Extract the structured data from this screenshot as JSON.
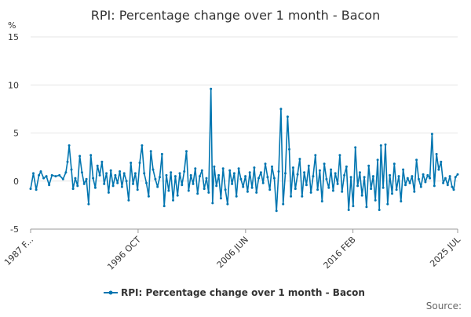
{
  "chart_data": {
    "type": "line",
    "title": "RPI: Percentage change over 1 month - Bacon",
    "ylabel": "%",
    "xlabel": "",
    "ylim": [
      -5,
      15
    ],
    "y_ticks": [
      -5,
      0,
      5,
      10,
      15
    ],
    "x_range": [
      1987.08,
      2025.5
    ],
    "x_ticks": [
      {
        "label": "1987 F...",
        "x": 1987.08
      },
      {
        "label": "1996 OCT",
        "x": 1996.75
      },
      {
        "label": "2006 JUN",
        "x": 2006.42
      },
      {
        "label": "2016 FEB",
        "x": 2016.08
      },
      {
        "label": "2025 JUL",
        "x": 2025.5
      }
    ],
    "grid": true,
    "legend_position": "bottom-center",
    "series": [
      {
        "name": "RPI: Percentage change over 1 month - Bacon",
        "color": "#0075b0",
        "points": [
          [
            1987.08,
            -0.8
          ],
          [
            1987.33,
            0.8
          ],
          [
            1987.58,
            -0.9
          ],
          [
            1987.83,
            0.6
          ],
          [
            1988.0,
            1.0
          ],
          [
            1988.25,
            0.3
          ],
          [
            1988.5,
            0.5
          ],
          [
            1988.75,
            -0.4
          ],
          [
            1989.0,
            0.6
          ],
          [
            1989.33,
            0.5
          ],
          [
            1989.67,
            0.6
          ],
          [
            1990.0,
            0.2
          ],
          [
            1990.25,
            0.9
          ],
          [
            1990.4,
            2.0
          ],
          [
            1990.55,
            3.7
          ],
          [
            1990.75,
            1.2
          ],
          [
            1990.9,
            -0.8
          ],
          [
            1991.1,
            0.3
          ],
          [
            1991.3,
            -0.5
          ],
          [
            1991.5,
            2.6
          ],
          [
            1991.7,
            0.9
          ],
          [
            1991.9,
            -0.3
          ],
          [
            1992.1,
            0.2
          ],
          [
            1992.3,
            -2.4
          ],
          [
            1992.5,
            2.7
          ],
          [
            1992.7,
            0.3
          ],
          [
            1992.9,
            -0.7
          ],
          [
            1993.1,
            1.6
          ],
          [
            1993.3,
            0.6
          ],
          [
            1993.5,
            2.0
          ],
          [
            1993.7,
            -0.3
          ],
          [
            1993.9,
            0.8
          ],
          [
            1994.1,
            -1.2
          ],
          [
            1994.3,
            1.1
          ],
          [
            1994.5,
            -0.5
          ],
          [
            1994.7,
            0.6
          ],
          [
            1994.9,
            -0.2
          ],
          [
            1995.1,
            1.0
          ],
          [
            1995.3,
            -0.6
          ],
          [
            1995.5,
            0.8
          ],
          [
            1995.7,
            0.0
          ],
          [
            1995.9,
            -2.0
          ],
          [
            1996.1,
            1.9
          ],
          [
            1996.3,
            -0.3
          ],
          [
            1996.5,
            0.8
          ],
          [
            1996.7,
            -0.9
          ],
          [
            1996.9,
            1.9
          ],
          [
            1997.1,
            3.7
          ],
          [
            1997.3,
            0.8
          ],
          [
            1997.5,
            -0.2
          ],
          [
            1997.7,
            -1.6
          ],
          [
            1997.9,
            3.1
          ],
          [
            1998.1,
            1.2
          ],
          [
            1998.3,
            0.2
          ],
          [
            1998.5,
            -0.6
          ],
          [
            1998.7,
            0.4
          ],
          [
            1998.9,
            2.8
          ],
          [
            1999.1,
            -2.6
          ],
          [
            1999.3,
            0.6
          ],
          [
            1999.5,
            -1.0
          ],
          [
            1999.7,
            0.9
          ],
          [
            1999.9,
            -2.0
          ],
          [
            2000.1,
            0.5
          ],
          [
            2000.3,
            -1.5
          ],
          [
            2000.5,
            0.8
          ],
          [
            2000.7,
            -0.4
          ],
          [
            2000.9,
            1.0
          ],
          [
            2001.1,
            3.1
          ],
          [
            2001.3,
            -1.0
          ],
          [
            2001.5,
            0.6
          ],
          [
            2001.7,
            -0.3
          ],
          [
            2001.9,
            1.3
          ],
          [
            2002.1,
            -1.3
          ],
          [
            2002.3,
            0.5
          ],
          [
            2002.5,
            1.1
          ],
          [
            2002.7,
            -0.8
          ],
          [
            2002.9,
            0.3
          ],
          [
            2003.1,
            -1.2
          ],
          [
            2003.3,
            9.6
          ],
          [
            2003.45,
            -2.3
          ],
          [
            2003.6,
            1.5
          ],
          [
            2003.8,
            -0.5
          ],
          [
            2004.0,
            0.6
          ],
          [
            2004.2,
            -1.8
          ],
          [
            2004.4,
            1.3
          ],
          [
            2004.6,
            -0.9
          ],
          [
            2004.8,
            -2.4
          ],
          [
            2005.0,
            1.1
          ],
          [
            2005.2,
            -0.3
          ],
          [
            2005.4,
            0.8
          ],
          [
            2005.6,
            -1.6
          ],
          [
            2005.8,
            1.3
          ],
          [
            2006.0,
            0.2
          ],
          [
            2006.2,
            -0.6
          ],
          [
            2006.4,
            0.5
          ],
          [
            2006.6,
            -1.1
          ],
          [
            2006.8,
            0.9
          ],
          [
            2007.0,
            -0.7
          ],
          [
            2007.2,
            1.4
          ],
          [
            2007.4,
            -1.2
          ],
          [
            2007.6,
            0.3
          ],
          [
            2007.8,
            0.9
          ],
          [
            2008.0,
            -0.2
          ],
          [
            2008.2,
            1.8
          ],
          [
            2008.4,
            0.4
          ],
          [
            2008.6,
            -0.9
          ],
          [
            2008.8,
            1.5
          ],
          [
            2009.0,
            0.3
          ],
          [
            2009.2,
            -3.1
          ],
          [
            2009.4,
            1.0
          ],
          [
            2009.6,
            7.5
          ],
          [
            2009.8,
            -2.4
          ],
          [
            2010.0,
            0.8
          ],
          [
            2010.2,
            6.7
          ],
          [
            2010.35,
            3.3
          ],
          [
            2010.5,
            -1.6
          ],
          [
            2010.7,
            1.4
          ],
          [
            2010.9,
            -0.8
          ],
          [
            2011.1,
            0.7
          ],
          [
            2011.3,
            2.3
          ],
          [
            2011.5,
            -1.6
          ],
          [
            2011.7,
            0.9
          ],
          [
            2011.9,
            -0.4
          ],
          [
            2012.1,
            1.6
          ],
          [
            2012.3,
            -1.2
          ],
          [
            2012.5,
            0.5
          ],
          [
            2012.7,
            2.7
          ],
          [
            2012.9,
            -0.9
          ],
          [
            2013.1,
            1.1
          ],
          [
            2013.3,
            -2.1
          ],
          [
            2013.5,
            1.8
          ],
          [
            2013.7,
            0.2
          ],
          [
            2013.9,
            -0.7
          ],
          [
            2014.1,
            1.2
          ],
          [
            2014.3,
            -1.0
          ],
          [
            2014.5,
            0.8
          ],
          [
            2014.7,
            -0.3
          ],
          [
            2014.9,
            2.7
          ],
          [
            2015.1,
            -1.1
          ],
          [
            2015.3,
            0.6
          ],
          [
            2015.5,
            1.5
          ],
          [
            2015.7,
            -3.0
          ],
          [
            2015.9,
            0.4
          ],
          [
            2016.1,
            -2.6
          ],
          [
            2016.3,
            3.5
          ],
          [
            2016.5,
            -0.5
          ],
          [
            2016.7,
            0.9
          ],
          [
            2016.9,
            -1.5
          ],
          [
            2017.1,
            0.4
          ],
          [
            2017.3,
            -2.7
          ],
          [
            2017.5,
            1.6
          ],
          [
            2017.7,
            -0.8
          ],
          [
            2017.9,
            0.5
          ],
          [
            2018.1,
            -2.0
          ],
          [
            2018.3,
            2.2
          ],
          [
            2018.45,
            -3.0
          ],
          [
            2018.6,
            3.7
          ],
          [
            2018.8,
            -0.7
          ],
          [
            2019.0,
            3.8
          ],
          [
            2019.2,
            -2.4
          ],
          [
            2019.4,
            0.6
          ],
          [
            2019.6,
            -1.3
          ],
          [
            2019.8,
            1.8
          ],
          [
            2020.0,
            -0.9
          ],
          [
            2020.2,
            0.5
          ],
          [
            2020.4,
            -2.1
          ],
          [
            2020.6,
            1.2
          ],
          [
            2020.8,
            -0.4
          ],
          [
            2021.0,
            0.3
          ],
          [
            2021.2,
            -0.2
          ],
          [
            2021.4,
            0.5
          ],
          [
            2021.6,
            -1.1
          ],
          [
            2021.8,
            2.2
          ],
          [
            2022.0,
            0.2
          ],
          [
            2022.2,
            -0.6
          ],
          [
            2022.4,
            0.7
          ],
          [
            2022.6,
            -0.1
          ],
          [
            2022.8,
            0.6
          ],
          [
            2023.0,
            0.3
          ],
          [
            2023.2,
            4.9
          ],
          [
            2023.4,
            -0.5
          ],
          [
            2023.6,
            2.8
          ],
          [
            2023.8,
            1.2
          ],
          [
            2024.0,
            2.0
          ],
          [
            2024.2,
            -0.2
          ],
          [
            2024.4,
            0.3
          ],
          [
            2024.6,
            -0.4
          ],
          [
            2024.8,
            0.5
          ],
          [
            2025.0,
            -0.6
          ],
          [
            2025.15,
            -0.9
          ],
          [
            2025.3,
            0.4
          ],
          [
            2025.5,
            0.7
          ]
        ]
      }
    ]
  },
  "footer": {
    "source_label": "Source:"
  }
}
